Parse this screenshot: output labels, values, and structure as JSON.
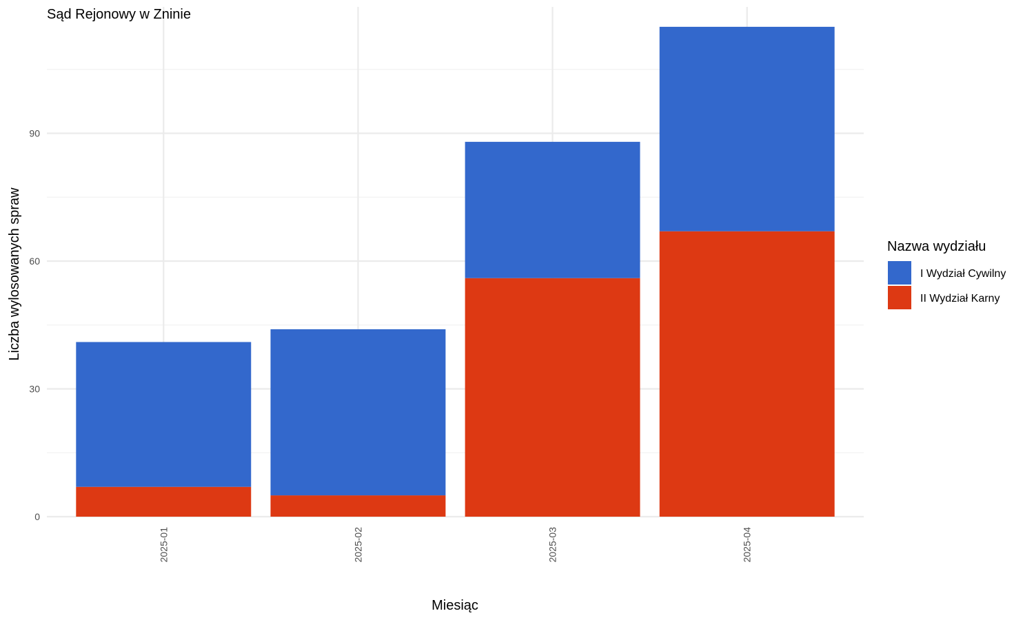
{
  "chart_data": {
    "type": "bar",
    "stacked": true,
    "title": "Sąd Rejonowy w Zninie",
    "xlabel": "Miesiąc",
    "ylabel": "Liczba wylosowanych spraw",
    "categories": [
      "2025-01",
      "2025-02",
      "2025-03",
      "2025-04"
    ],
    "series": [
      {
        "name": "II Wydział Karny",
        "color": "#DD3913",
        "values": [
          7,
          5,
          56,
          67
        ]
      },
      {
        "name": "I Wydział Cywilny",
        "color": "#3368CC",
        "values": [
          34,
          39,
          32,
          48
        ]
      }
    ],
    "ylim": [
      0,
      115
    ],
    "y_ticks": [
      0,
      30,
      60,
      90
    ],
    "grid": true,
    "x_tick_rotation": "vertical",
    "legend": {
      "title": "Nazwa wydziału",
      "placement": "right",
      "items": [
        {
          "label": "I Wydział Cywilny",
          "color": "#3368CC"
        },
        {
          "label": "II Wydział Karny",
          "color": "#DD3913"
        }
      ]
    }
  }
}
